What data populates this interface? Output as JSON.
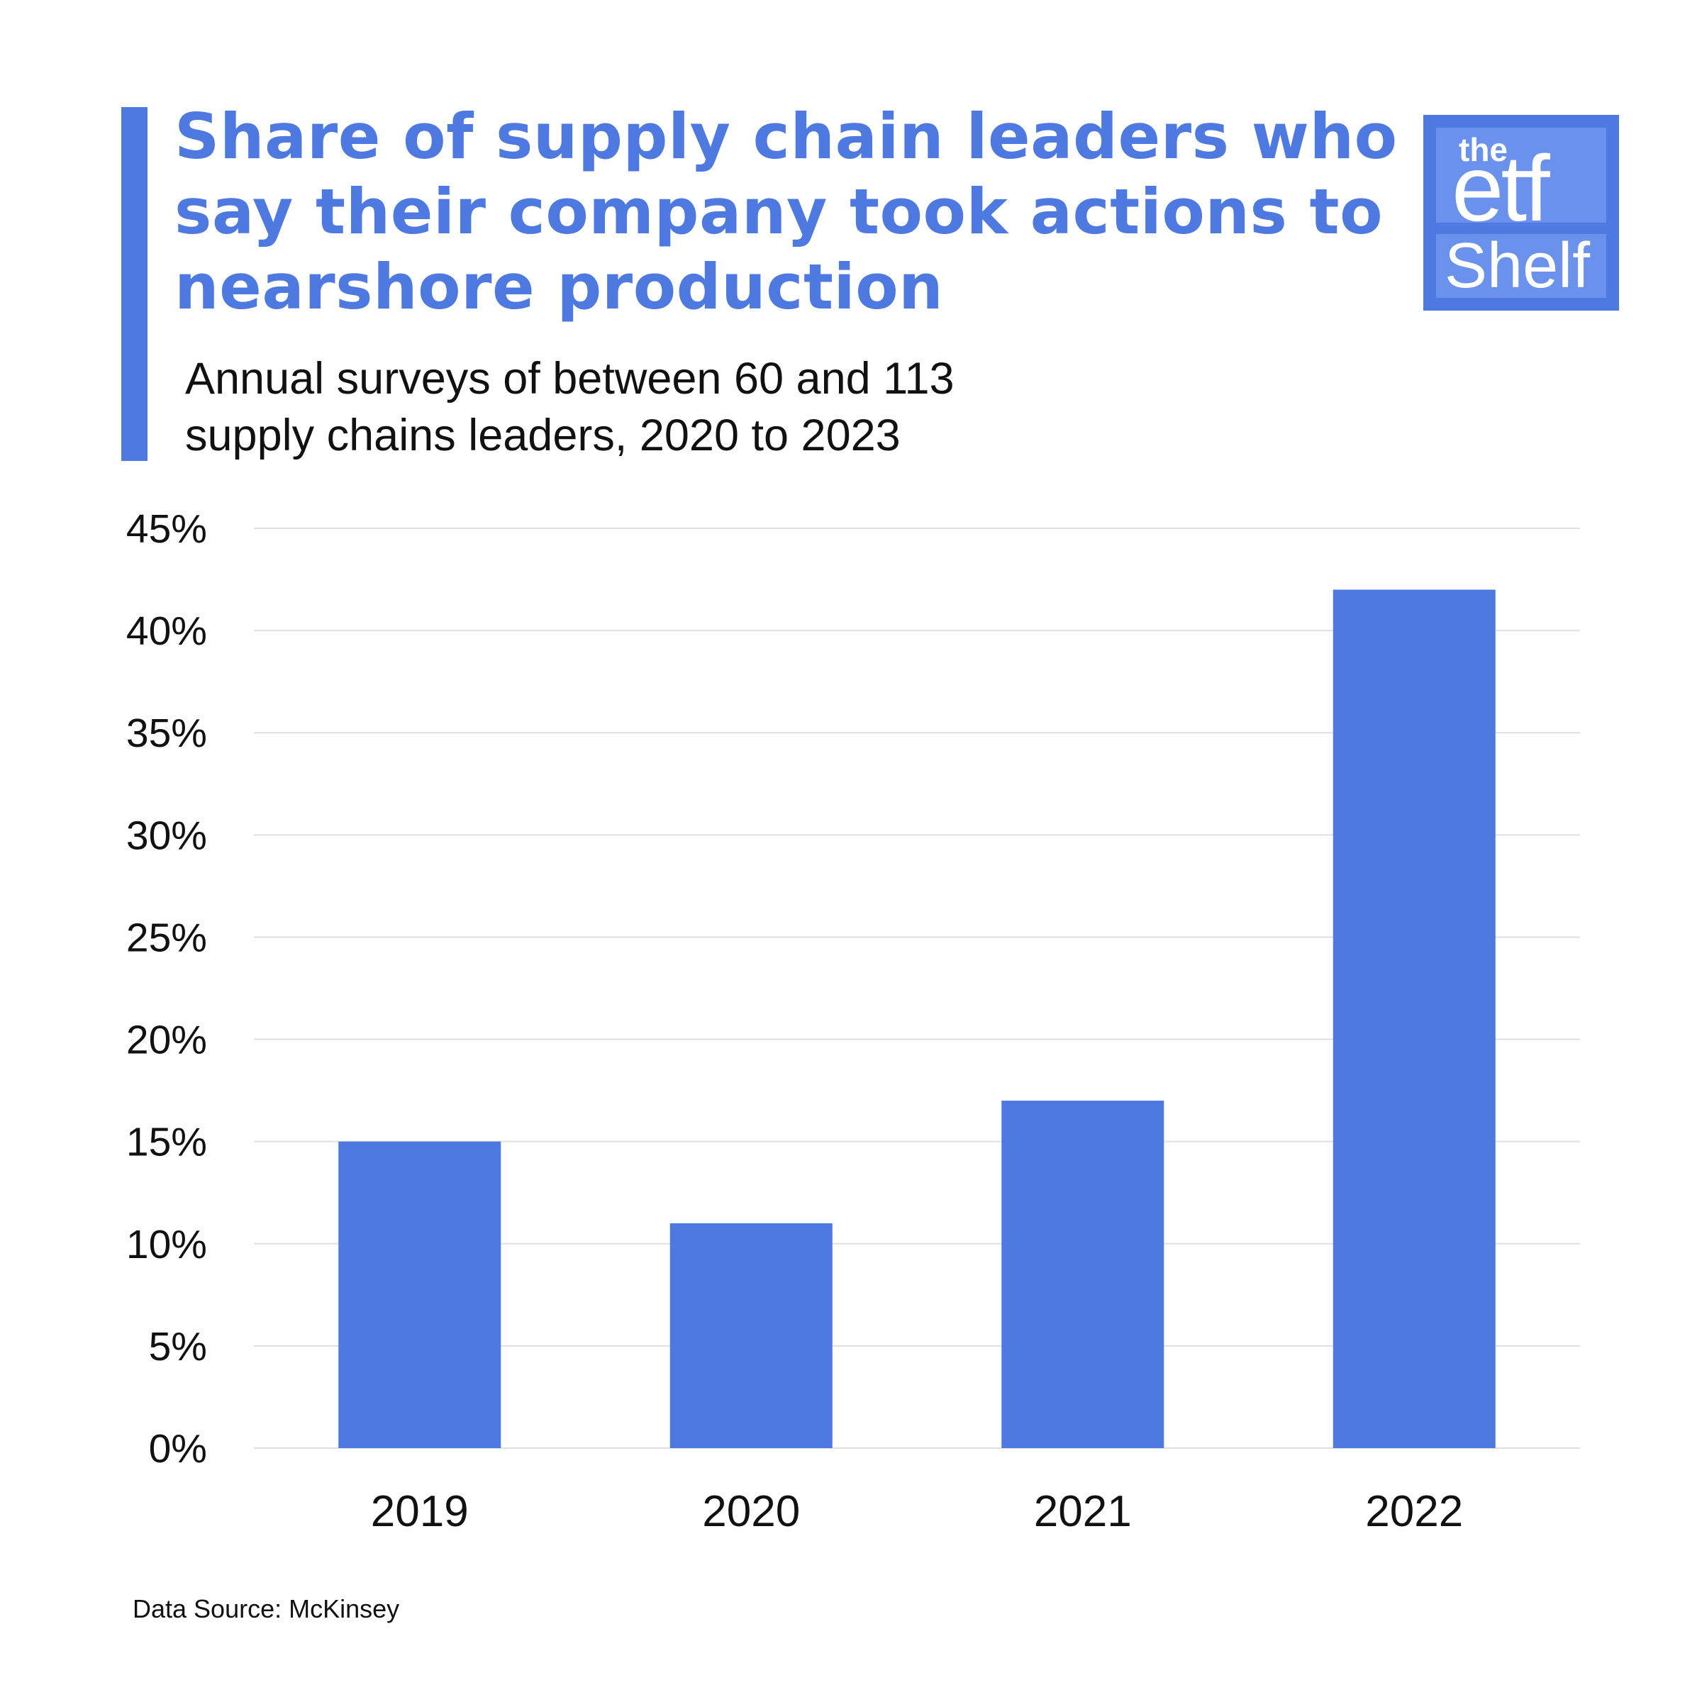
{
  "header": {
    "title": "Share of supply chain leaders who say their company took actions to nearshore production",
    "subtitle_line1": "Annual surveys of between 60 and 113",
    "subtitle_line2": "supply chains leaders, 2020 to 2023"
  },
  "logo": {
    "line1": "the",
    "line2": "etf",
    "line3": "Shelf"
  },
  "source": "Data Source: McKinsey",
  "colors": {
    "accent": "#4E79E0",
    "bar": "#4E79E0",
    "grid": "#E0E0E0",
    "text": "#111111"
  },
  "chart_data": {
    "type": "bar",
    "categories": [
      "2019",
      "2020",
      "2021",
      "2022"
    ],
    "values": [
      15,
      11,
      17,
      42
    ],
    "ylim": [
      0,
      45
    ],
    "yticks": [
      0,
      5,
      10,
      15,
      20,
      25,
      30,
      35,
      40,
      45
    ],
    "ytick_labels": [
      "0%",
      "5%",
      "10%",
      "15%",
      "20%",
      "25%",
      "30%",
      "35%",
      "40%",
      "45%"
    ],
    "grid": true,
    "title": "Share of supply chain leaders who say their company took actions to nearshore production",
    "xlabel": "",
    "ylabel": ""
  }
}
